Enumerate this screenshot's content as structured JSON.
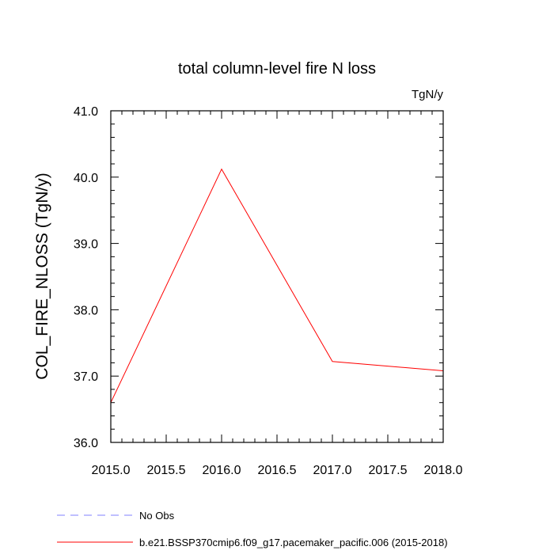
{
  "chart_data": {
    "type": "line",
    "title": "total column-level fire N loss",
    "units": "TgN/y",
    "ylabel": "COL_FIRE_NLOSS  (TgN/y)",
    "xlabel": "",
    "xlim": [
      2015.0,
      2018.0
    ],
    "ylim": [
      36.0,
      41.0
    ],
    "x_ticks": [
      "2015.0",
      "2015.5",
      "2016.0",
      "2016.5",
      "2017.0",
      "2017.5",
      "2018.0"
    ],
    "x_tick_values": [
      2015.0,
      2015.5,
      2016.0,
      2016.5,
      2017.0,
      2017.5,
      2018.0
    ],
    "y_ticks": [
      "36.0",
      "37.0",
      "38.0",
      "39.0",
      "40.0",
      "41.0"
    ],
    "y_tick_values": [
      36.0,
      37.0,
      38.0,
      39.0,
      40.0,
      41.0
    ],
    "grid": false,
    "legend_position": "bottom-left",
    "series": [
      {
        "name": "No Obs",
        "color": "#8080ff",
        "dash": "dashed",
        "x": [],
        "y": []
      },
      {
        "name": "b.e21.BSSP370cmip6.f09_g17.pacemaker_pacific.006 (2015-2018)",
        "color": "#ff0000",
        "dash": "solid",
        "x": [
          2015.0,
          2016.0,
          2017.0,
          2018.0
        ],
        "y": [
          36.6,
          40.12,
          37.22,
          37.08
        ]
      }
    ]
  }
}
